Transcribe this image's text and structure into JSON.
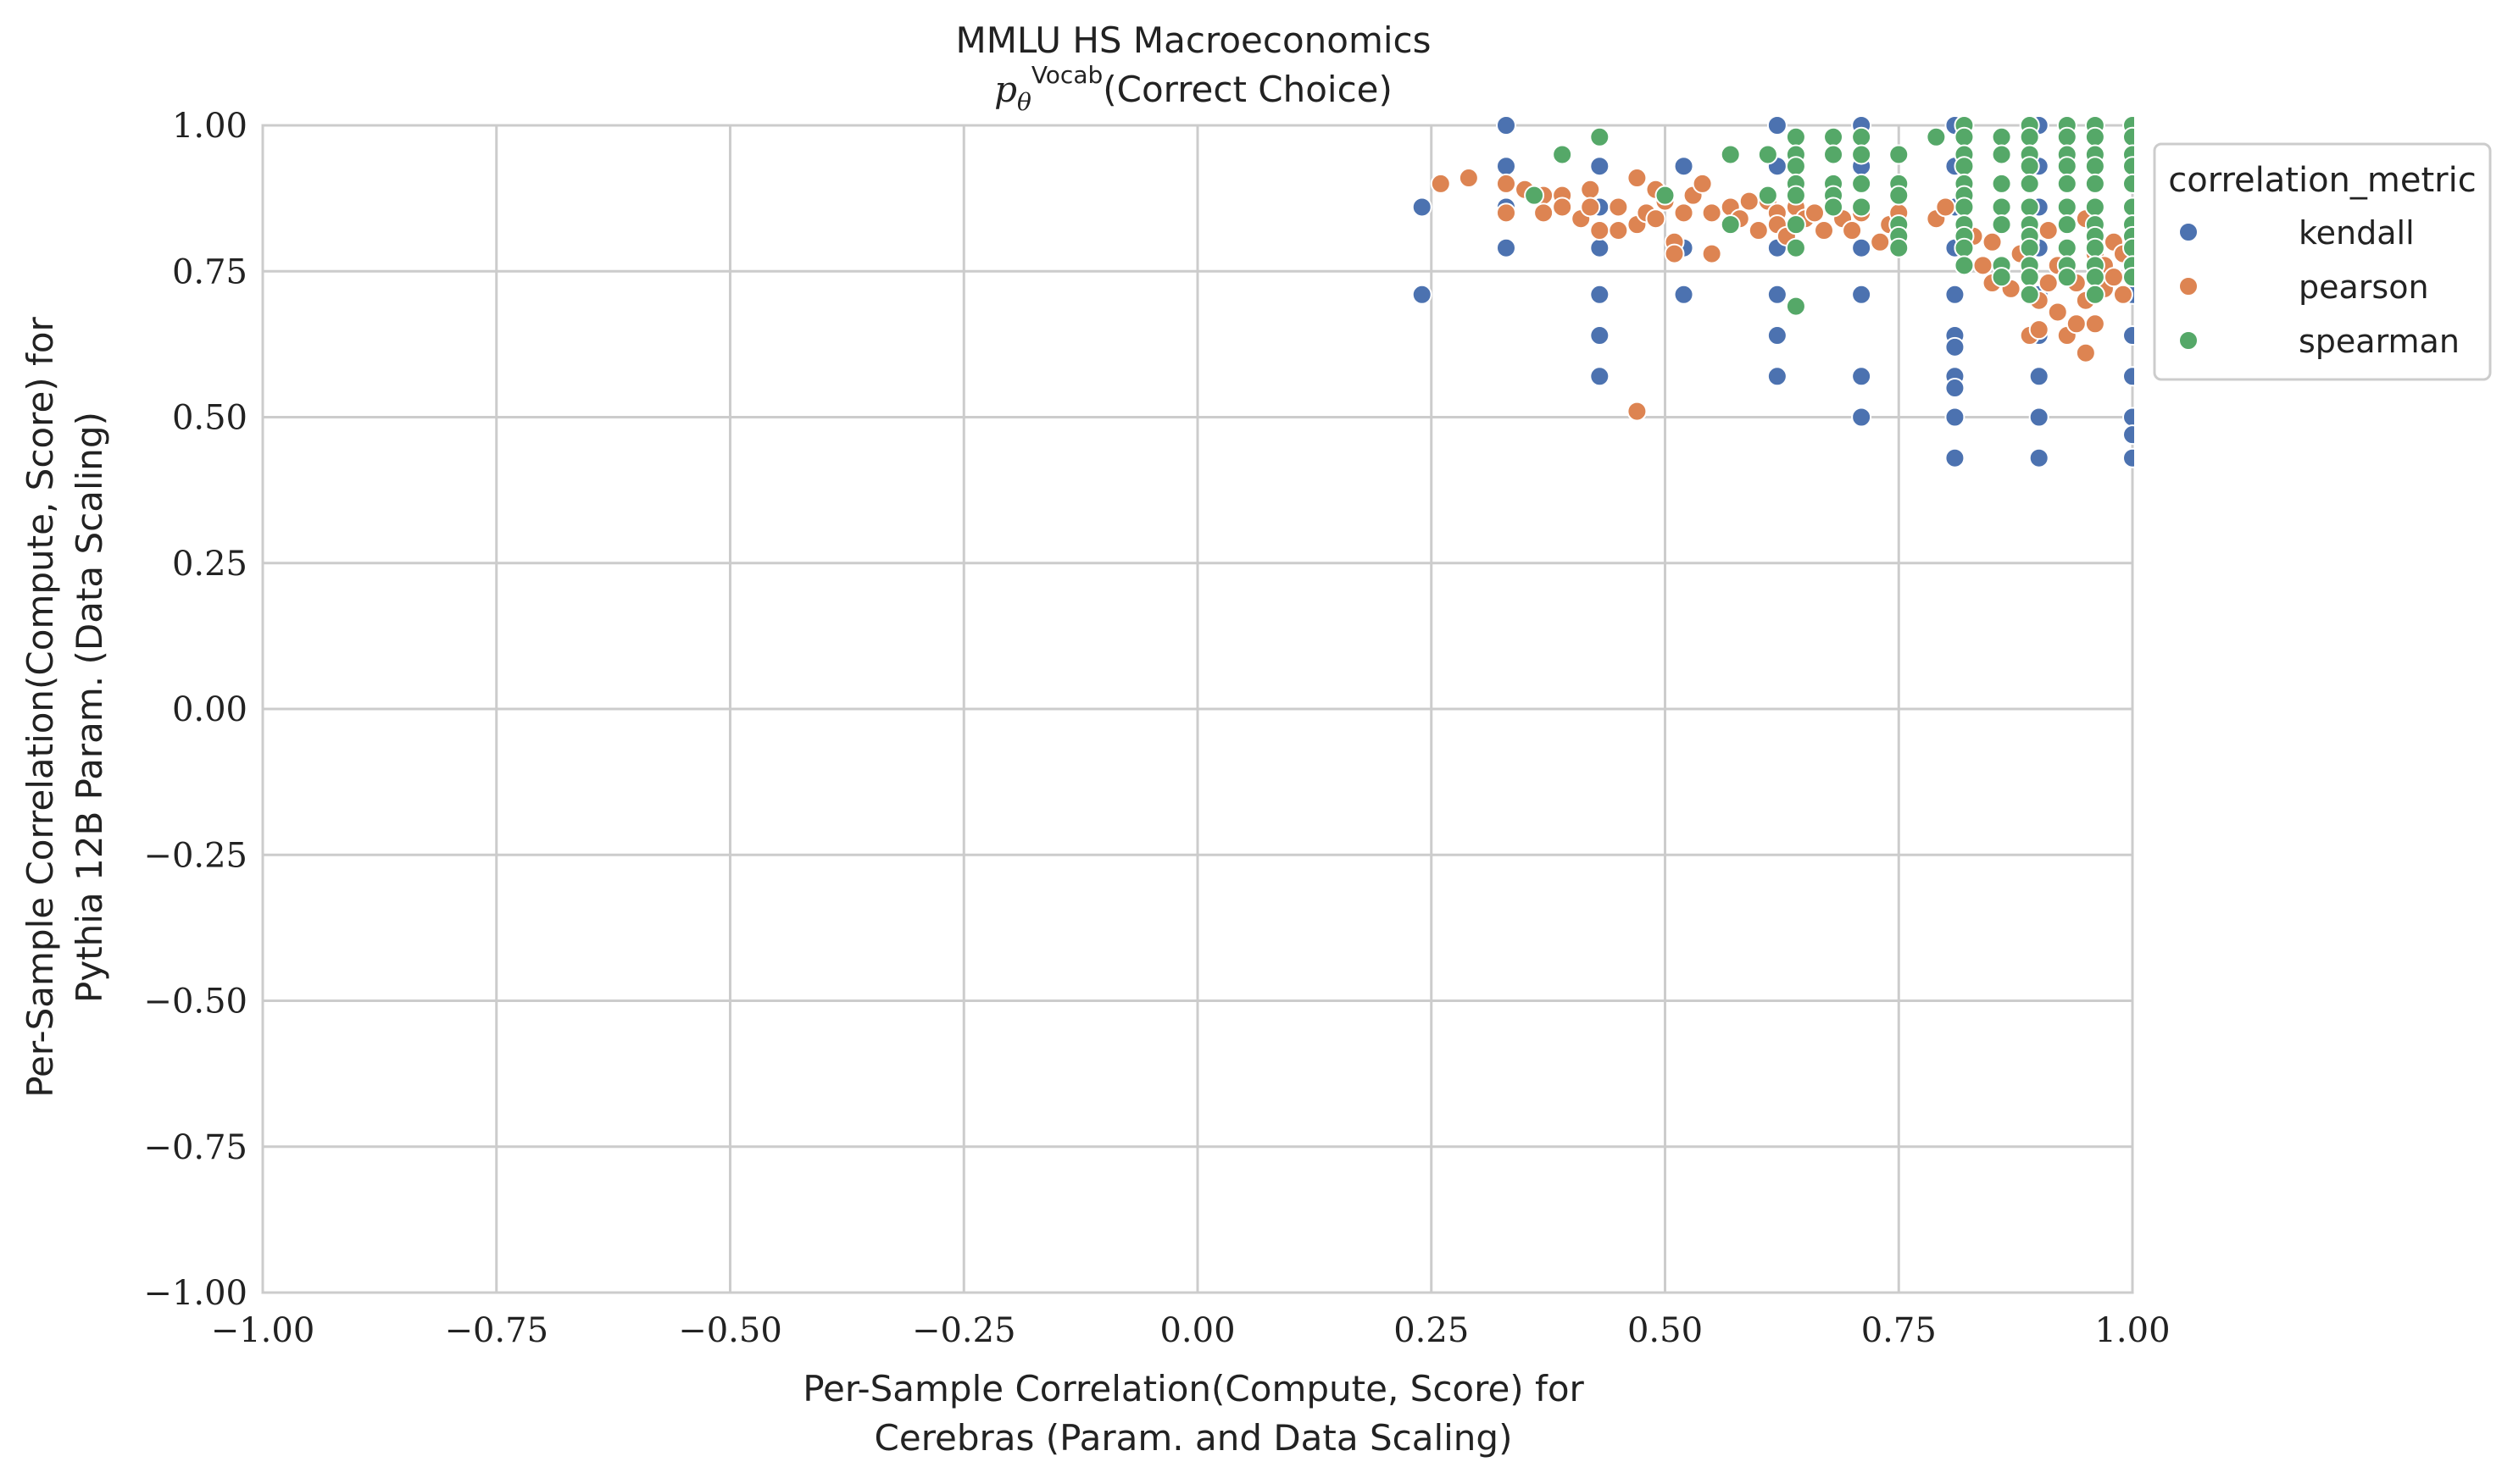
{
  "chart_data": {
    "type": "scatter",
    "title": "MMLU HS Macroeconomics",
    "subtitle_prefix": "p",
    "subtitle_subscript": "θ",
    "subtitle_superscript": "Vocab",
    "subtitle_suffix": "(Correct Choice)",
    "xlabel_line1": "Per-Sample Correlation(Compute, Score) for",
    "xlabel_line2": "Cerebras (Param. and Data Scaling)",
    "ylabel_line1": "Per-Sample Correlation(Compute, Score) for",
    "ylabel_line2": "Pythia 12B Param. (Data Scaling)",
    "xlim": [
      -1.0,
      1.0
    ],
    "ylim": [
      -1.0,
      1.0
    ],
    "xticks": [
      "−1.00",
      "−0.75",
      "−0.50",
      "−0.25",
      "0.00",
      "0.25",
      "0.50",
      "0.75",
      "1.00"
    ],
    "yticks": [
      "1.00",
      "0.75",
      "0.50",
      "0.25",
      "0.00",
      "−0.25",
      "−0.50",
      "−0.75",
      "−1.00"
    ],
    "grid": true,
    "legend": {
      "title": "correlation_metric",
      "placement": "outside-top-right"
    },
    "colors": {
      "kendall": "#4c72b0",
      "pearson": "#dd8452",
      "spearman": "#55a868",
      "grid": "#cccccc"
    },
    "series": [
      {
        "name": "kendall",
        "points": [
          [
            0.24,
            0.86
          ],
          [
            0.24,
            0.71
          ],
          [
            0.33,
            1.0
          ],
          [
            0.33,
            0.93
          ],
          [
            0.33,
            0.86
          ],
          [
            0.33,
            0.79
          ],
          [
            0.43,
            0.93
          ],
          [
            0.43,
            0.86
          ],
          [
            0.43,
            0.79
          ],
          [
            0.43,
            0.71
          ],
          [
            0.43,
            0.64
          ],
          [
            0.43,
            0.57
          ],
          [
            0.52,
            0.93
          ],
          [
            0.52,
            0.79
          ],
          [
            0.52,
            0.71
          ],
          [
            0.62,
            1.0
          ],
          [
            0.62,
            0.93
          ],
          [
            0.62,
            0.79
          ],
          [
            0.62,
            0.71
          ],
          [
            0.62,
            0.64
          ],
          [
            0.62,
            0.57
          ],
          [
            0.71,
            1.0
          ],
          [
            0.71,
            0.93
          ],
          [
            0.71,
            0.86
          ],
          [
            0.71,
            0.79
          ],
          [
            0.71,
            0.71
          ],
          [
            0.71,
            0.57
          ],
          [
            0.71,
            0.5
          ],
          [
            0.81,
            1.0
          ],
          [
            0.81,
            0.93
          ],
          [
            0.81,
            0.86
          ],
          [
            0.81,
            0.79
          ],
          [
            0.81,
            0.71
          ],
          [
            0.81,
            0.64
          ],
          [
            0.81,
            0.62
          ],
          [
            0.81,
            0.57
          ],
          [
            0.81,
            0.55
          ],
          [
            0.81,
            0.5
          ],
          [
            0.81,
            0.43
          ],
          [
            0.9,
            1.0
          ],
          [
            0.9,
            0.93
          ],
          [
            0.9,
            0.86
          ],
          [
            0.9,
            0.79
          ],
          [
            0.9,
            0.71
          ],
          [
            0.9,
            0.64
          ],
          [
            0.9,
            0.57
          ],
          [
            0.9,
            0.5
          ],
          [
            0.9,
            0.43
          ],
          [
            1.0,
            1.0
          ],
          [
            1.0,
            0.93
          ],
          [
            1.0,
            0.86
          ],
          [
            1.0,
            0.79
          ],
          [
            1.0,
            0.71
          ],
          [
            1.0,
            0.64
          ],
          [
            1.0,
            0.57
          ],
          [
            1.0,
            0.5
          ],
          [
            1.0,
            0.47
          ],
          [
            1.0,
            0.43
          ]
        ]
      },
      {
        "name": "pearson",
        "points": [
          [
            0.26,
            0.9
          ],
          [
            0.29,
            0.91
          ],
          [
            0.33,
            0.85
          ],
          [
            0.33,
            0.9
          ],
          [
            0.35,
            0.89
          ],
          [
            0.37,
            0.88
          ],
          [
            0.37,
            0.85
          ],
          [
            0.39,
            0.88
          ],
          [
            0.39,
            0.86
          ],
          [
            0.41,
            0.84
          ],
          [
            0.42,
            0.89
          ],
          [
            0.42,
            0.86
          ],
          [
            0.43,
            0.82
          ],
          [
            0.45,
            0.86
          ],
          [
            0.45,
            0.82
          ],
          [
            0.47,
            0.91
          ],
          [
            0.47,
            0.83
          ],
          [
            0.47,
            0.51
          ],
          [
            0.48,
            0.85
          ],
          [
            0.49,
            0.89
          ],
          [
            0.49,
            0.84
          ],
          [
            0.5,
            0.87
          ],
          [
            0.51,
            0.8
          ],
          [
            0.51,
            0.78
          ],
          [
            0.52,
            0.85
          ],
          [
            0.53,
            0.88
          ],
          [
            0.54,
            0.9
          ],
          [
            0.55,
            0.85
          ],
          [
            0.55,
            0.78
          ],
          [
            0.57,
            0.86
          ],
          [
            0.58,
            0.84
          ],
          [
            0.59,
            0.87
          ],
          [
            0.6,
            0.82
          ],
          [
            0.61,
            0.87
          ],
          [
            0.62,
            0.85
          ],
          [
            0.62,
            0.83
          ],
          [
            0.63,
            0.81
          ],
          [
            0.64,
            0.86
          ],
          [
            0.65,
            0.84
          ],
          [
            0.66,
            0.85
          ],
          [
            0.67,
            0.82
          ],
          [
            0.68,
            0.87
          ],
          [
            0.69,
            0.84
          ],
          [
            0.7,
            0.82
          ],
          [
            0.71,
            0.85
          ],
          [
            0.73,
            0.8
          ],
          [
            0.74,
            0.83
          ],
          [
            0.75,
            0.85
          ],
          [
            0.79,
            0.84
          ],
          [
            0.8,
            0.86
          ],
          [
            0.82,
            0.79
          ],
          [
            0.83,
            0.81
          ],
          [
            0.84,
            0.76
          ],
          [
            0.85,
            0.8
          ],
          [
            0.85,
            0.73
          ],
          [
            0.86,
            0.83
          ],
          [
            0.87,
            0.72
          ],
          [
            0.88,
            0.78
          ],
          [
            0.89,
            0.64
          ],
          [
            0.89,
            0.8
          ],
          [
            0.9,
            0.7
          ],
          [
            0.9,
            0.65
          ],
          [
            0.91,
            0.73
          ],
          [
            0.91,
            0.82
          ],
          [
            0.92,
            0.68
          ],
          [
            0.92,
            0.76
          ],
          [
            0.93,
            0.79
          ],
          [
            0.93,
            0.64
          ],
          [
            0.94,
            0.66
          ],
          [
            0.94,
            0.73
          ],
          [
            0.95,
            0.7
          ],
          [
            0.95,
            0.61
          ],
          [
            0.95,
            0.84
          ],
          [
            0.96,
            0.78
          ],
          [
            0.96,
            0.66
          ],
          [
            0.97,
            0.72
          ],
          [
            0.97,
            0.76
          ],
          [
            0.98,
            0.8
          ],
          [
            0.98,
            0.74
          ],
          [
            0.99,
            0.78
          ],
          [
            0.99,
            0.71
          ],
          [
            1.0,
            0.8
          ],
          [
            1.0,
            0.75
          ]
        ]
      },
      {
        "name": "spearman",
        "points": [
          [
            0.36,
            0.88
          ],
          [
            0.39,
            0.95
          ],
          [
            0.43,
            0.98
          ],
          [
            0.5,
            0.88
          ],
          [
            0.57,
            0.95
          ],
          [
            0.57,
            0.83
          ],
          [
            0.61,
            0.95
          ],
          [
            0.61,
            0.88
          ],
          [
            0.64,
            0.98
          ],
          [
            0.64,
            0.95
          ],
          [
            0.64,
            0.93
          ],
          [
            0.64,
            0.9
          ],
          [
            0.64,
            0.88
          ],
          [
            0.64,
            0.83
          ],
          [
            0.64,
            0.79
          ],
          [
            0.64,
            0.69
          ],
          [
            0.68,
            0.98
          ],
          [
            0.68,
            0.95
          ],
          [
            0.68,
            0.9
          ],
          [
            0.68,
            0.88
          ],
          [
            0.68,
            0.86
          ],
          [
            0.71,
            0.98
          ],
          [
            0.71,
            0.95
          ],
          [
            0.71,
            0.9
          ],
          [
            0.71,
            0.86
          ],
          [
            0.75,
            0.95
          ],
          [
            0.75,
            0.9
          ],
          [
            0.75,
            0.88
          ],
          [
            0.75,
            0.83
          ],
          [
            0.75,
            0.81
          ],
          [
            0.75,
            0.79
          ],
          [
            0.79,
            0.98
          ],
          [
            0.82,
            1.0
          ],
          [
            0.82,
            0.98
          ],
          [
            0.82,
            0.95
          ],
          [
            0.82,
            0.93
          ],
          [
            0.82,
            0.9
          ],
          [
            0.82,
            0.88
          ],
          [
            0.82,
            0.86
          ],
          [
            0.82,
            0.83
          ],
          [
            0.82,
            0.81
          ],
          [
            0.82,
            0.79
          ],
          [
            0.82,
            0.76
          ],
          [
            0.86,
            0.98
          ],
          [
            0.86,
            0.95
          ],
          [
            0.86,
            0.9
          ],
          [
            0.86,
            0.86
          ],
          [
            0.86,
            0.83
          ],
          [
            0.86,
            0.76
          ],
          [
            0.86,
            0.74
          ],
          [
            0.89,
            1.0
          ],
          [
            0.89,
            0.98
          ],
          [
            0.89,
            0.95
          ],
          [
            0.89,
            0.93
          ],
          [
            0.89,
            0.9
          ],
          [
            0.89,
            0.86
          ],
          [
            0.89,
            0.83
          ],
          [
            0.89,
            0.81
          ],
          [
            0.89,
            0.79
          ],
          [
            0.89,
            0.76
          ],
          [
            0.89,
            0.74
          ],
          [
            0.89,
            0.71
          ],
          [
            0.93,
            1.0
          ],
          [
            0.93,
            0.98
          ],
          [
            0.93,
            0.95
          ],
          [
            0.93,
            0.93
          ],
          [
            0.93,
            0.9
          ],
          [
            0.93,
            0.86
          ],
          [
            0.93,
            0.83
          ],
          [
            0.93,
            0.79
          ],
          [
            0.93,
            0.76
          ],
          [
            0.93,
            0.74
          ],
          [
            0.96,
            1.0
          ],
          [
            0.96,
            0.98
          ],
          [
            0.96,
            0.95
          ],
          [
            0.96,
            0.93
          ],
          [
            0.96,
            0.9
          ],
          [
            0.96,
            0.86
          ],
          [
            0.96,
            0.83
          ],
          [
            0.96,
            0.81
          ],
          [
            0.96,
            0.79
          ],
          [
            0.96,
            0.76
          ],
          [
            0.96,
            0.74
          ],
          [
            0.96,
            0.71
          ],
          [
            1.0,
            1.0
          ],
          [
            1.0,
            0.98
          ],
          [
            1.0,
            0.95
          ],
          [
            1.0,
            0.93
          ],
          [
            1.0,
            0.9
          ],
          [
            1.0,
            0.86
          ],
          [
            1.0,
            0.83
          ],
          [
            1.0,
            0.81
          ],
          [
            1.0,
            0.79
          ],
          [
            1.0,
            0.76
          ],
          [
            1.0,
            0.74
          ]
        ]
      }
    ]
  }
}
